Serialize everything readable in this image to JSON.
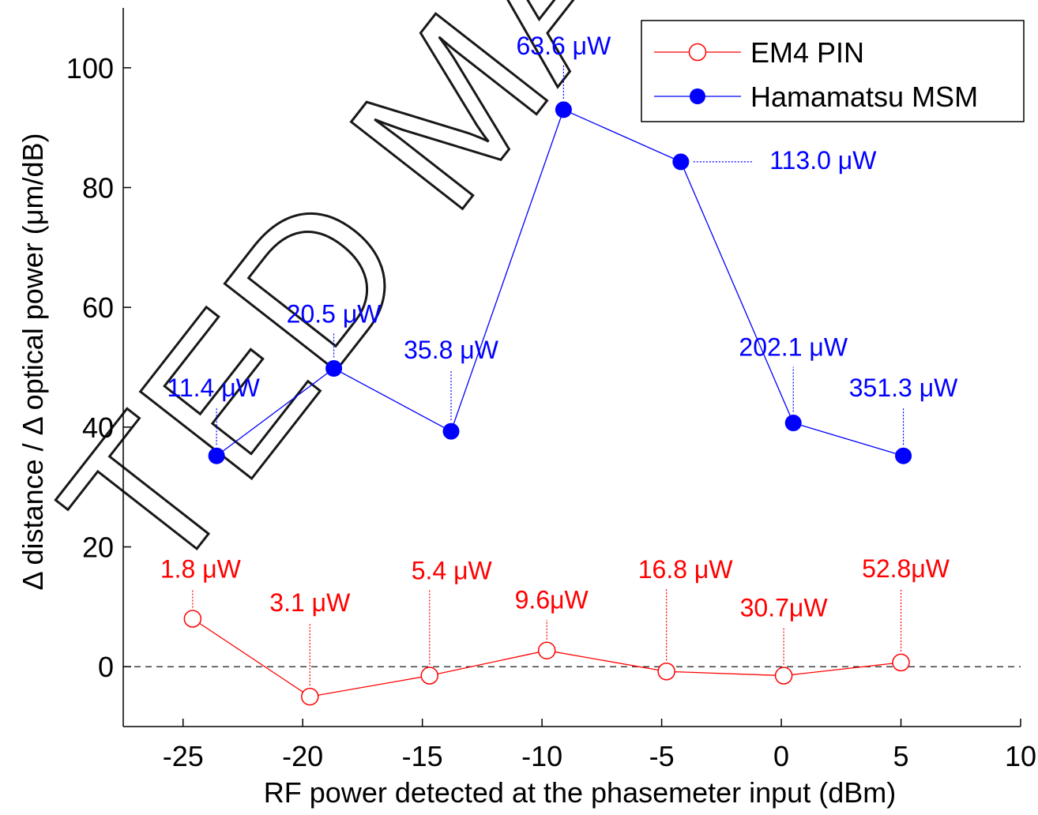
{
  "chart_data": {
    "type": "line",
    "xlabel": "RF power detected at the phasemeter input (dBm)",
    "ylabel": "Δ distance / Δ optical power (μm/dB)",
    "xlim": [
      -27.5,
      10
    ],
    "ylim": [
      -10,
      110
    ],
    "xticks": [
      -25,
      -20,
      -15,
      -10,
      -5,
      0,
      5,
      10
    ],
    "yticks": [
      0,
      20,
      40,
      60,
      80,
      100
    ],
    "grid": false,
    "legend": "top-right",
    "reference_line": {
      "y": 0,
      "style": "dashed"
    },
    "series": [
      {
        "name": "EM4 PIN",
        "color": "#ff0000",
        "marker": "open-circle",
        "x": [
          -24.6,
          -19.7,
          -14.7,
          -9.8,
          -4.8,
          0.1,
          5.0
        ],
        "y": [
          8.0,
          -5.0,
          -1.5,
          2.7,
          -0.8,
          -1.5,
          0.7
        ],
        "point_labels": [
          "1.8 μW",
          "3.1 μW",
          "5.4 μW",
          "9.6μW",
          "16.8 μW",
          "30.7μW",
          "52.8μW"
        ]
      },
      {
        "name": "Hamamatsu MSM",
        "color": "#0000ff",
        "marker": "filled-circle",
        "x": [
          -23.6,
          -18.7,
          -13.8,
          -9.1,
          -4.2,
          0.5,
          5.1
        ],
        "y": [
          35.2,
          49.8,
          39.3,
          93.0,
          84.3,
          40.7,
          35.2
        ],
        "point_labels": [
          "11.4 μW",
          "20.5 μW",
          "35.8 μW",
          "63.6 μW",
          "113.0 μW",
          "202.1 μW",
          "351.3 μW"
        ]
      }
    ]
  }
}
